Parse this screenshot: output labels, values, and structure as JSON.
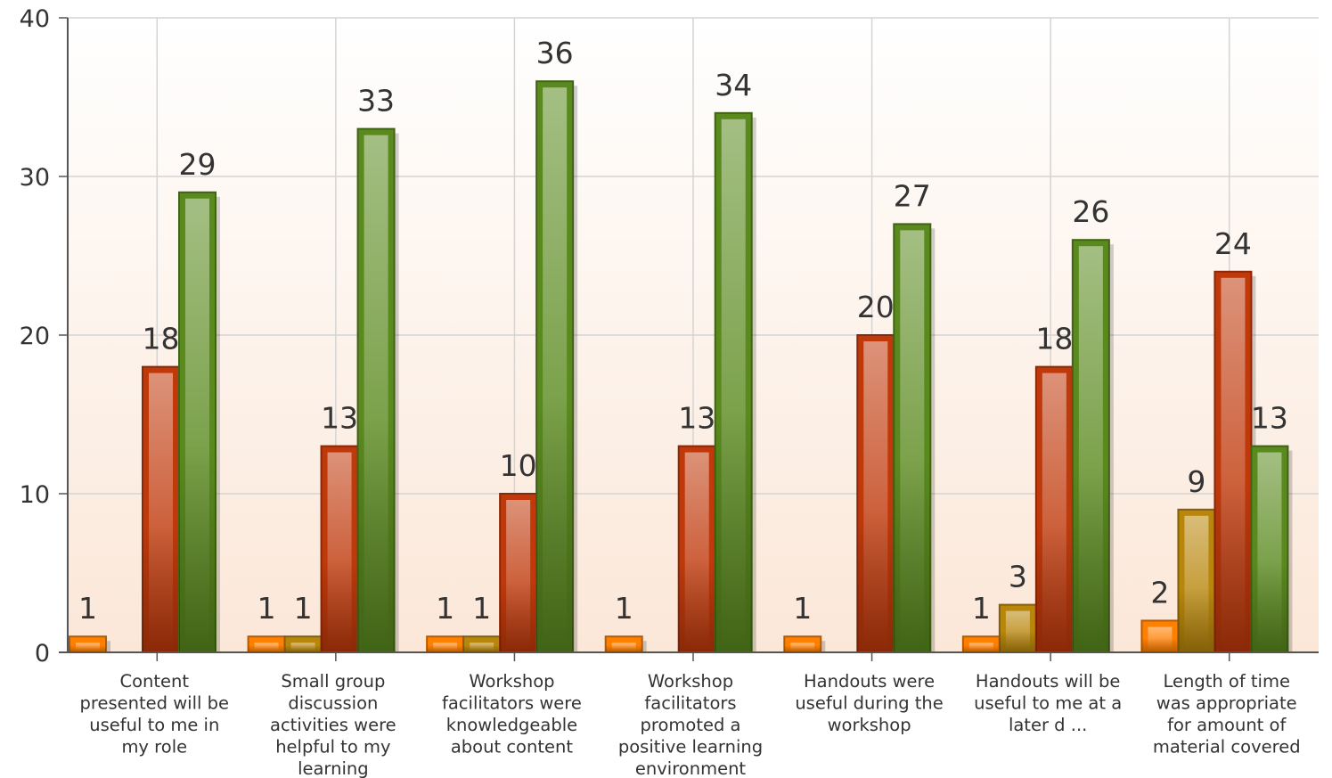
{
  "chart_data": {
    "type": "bar",
    "title": "",
    "xlabel": "",
    "ylabel": "",
    "ylim": [
      0,
      40
    ],
    "yticks": [
      0,
      10,
      20,
      30,
      40
    ],
    "grid": true,
    "legend": "none",
    "categories": [
      [
        "Content",
        "presented will be",
        "useful to me in",
        "my role"
      ],
      [
        "Small group",
        "discussion",
        "activities were",
        "helpful to my",
        "learning"
      ],
      [
        "Workshop",
        "facilitators were",
        "knowledgeable",
        "about content"
      ],
      [
        "Workshop",
        "facilitators",
        "promoted a",
        "positive learning",
        "environment"
      ],
      [
        "Handouts were",
        "useful during the",
        "workshop"
      ],
      [
        "Handouts will be",
        "useful to me at a",
        "later d ..."
      ],
      [
        "Length of time",
        "was appropriate",
        "for amount of",
        "material covered"
      ]
    ],
    "series": [
      {
        "color": "#ff7f00",
        "values": [
          1,
          1,
          1,
          1,
          1,
          1,
          2
        ]
      },
      {
        "color": "#b8860b",
        "values": [
          0,
          1,
          1,
          0,
          0,
          3,
          9
        ]
      },
      {
        "color": "#c0390b",
        "values": [
          18,
          13,
          10,
          13,
          20,
          18,
          24
        ]
      },
      {
        "color": "#5a8a1e",
        "values": [
          29,
          33,
          36,
          34,
          27,
          26,
          13
        ]
      }
    ]
  }
}
